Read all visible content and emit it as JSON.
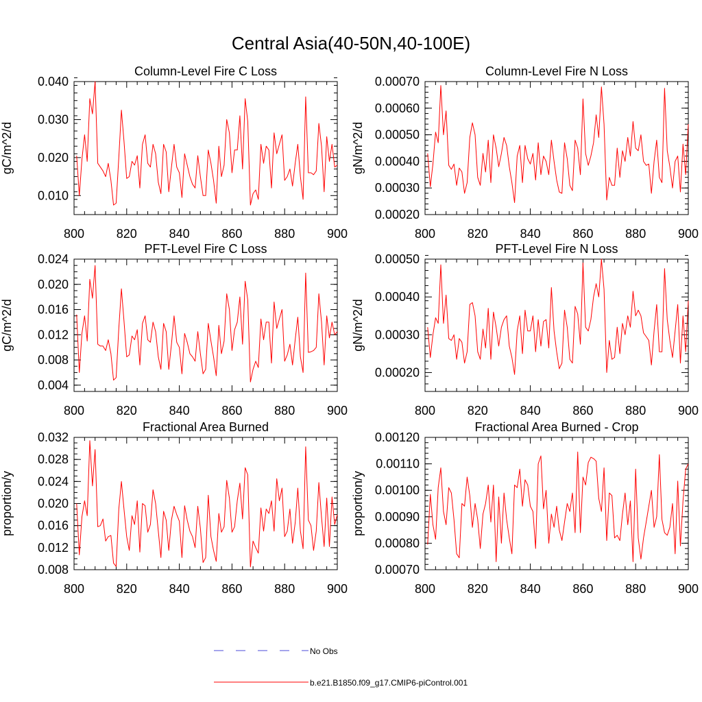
{
  "title": "Central Asia(40-50N,40-100E)",
  "colors": {
    "model_line": "#ff0000",
    "obs_line": "#4a4ad8",
    "axis": "#000000"
  },
  "legend": {
    "obs_label": "No Obs",
    "model_label": "b.e21.B1850.f09_g17.CMIP6-piControl.001"
  },
  "chart_data": [
    {
      "type": "line",
      "title": "Column-Level Fire C Loss",
      "ylabel": "gC/m^2/d",
      "xlim": [
        800,
        900
      ],
      "ylim": [
        0.005,
        0.04
      ],
      "xticks": [
        800,
        820,
        840,
        860,
        880,
        900
      ],
      "xtick_labels": [
        "800",
        "820",
        "840",
        "860",
        "880",
        "900"
      ],
      "yticks": [
        0.01,
        0.02,
        0.03,
        0.04
      ],
      "ytick_labels": [
        "0.010",
        "0.020",
        "0.030",
        "0.040"
      ],
      "minor_y": 0.002,
      "x_start": 801,
      "series": [
        {
          "name": "b.e21.B1850.f09_g17.CMIP6-piControl.001",
          "values": [
            0.0205,
            0.01,
            0.0195,
            0.026,
            0.019,
            0.0355,
            0.0315,
            0.04,
            0.0185,
            0.0175,
            0.0165,
            0.015,
            0.0185,
            0.014,
            0.0075,
            0.008,
            0.02,
            0.0325,
            0.024,
            0.0145,
            0.015,
            0.019,
            0.018,
            0.0205,
            0.012,
            0.0235,
            0.026,
            0.0185,
            0.0175,
            0.0235,
            0.021,
            0.0135,
            0.0105,
            0.0235,
            0.0215,
            0.011,
            0.0175,
            0.0235,
            0.0175,
            0.016,
            0.0095,
            0.021,
            0.018,
            0.015,
            0.013,
            0.012,
            0.0205,
            0.015,
            0.01,
            0.01,
            0.022,
            0.0185,
            0.014,
            0.008,
            0.023,
            0.015,
            0.018,
            0.03,
            0.0265,
            0.016,
            0.022,
            0.022,
            0.031,
            0.017,
            0.0355,
            0.0295,
            0.0075,
            0.0105,
            0.0115,
            0.009,
            0.0235,
            0.0185,
            0.023,
            0.022,
            0.012,
            0.0265,
            0.021,
            0.0235,
            0.026,
            0.014,
            0.015,
            0.017,
            0.0125,
            0.0185,
            0.0235,
            0.015,
            0.009,
            0.036,
            0.016,
            0.016,
            0.0155,
            0.0165,
            0.029,
            0.023,
            0.011,
            0.0255,
            0.019,
            0.0235,
            0.0175,
            0.018
          ]
        }
      ]
    },
    {
      "type": "line",
      "title": "Column-Level Fire N Loss",
      "ylabel": "gN/m^2/d",
      "xlim": [
        800,
        900
      ],
      "ylim": [
        0.0002,
        0.0007
      ],
      "xticks": [
        800,
        820,
        840,
        860,
        880,
        900
      ],
      "xtick_labels": [
        "800",
        "820",
        "840",
        "860",
        "880",
        "900"
      ],
      "yticks": [
        0.0002,
        0.0003,
        0.0004,
        0.0005,
        0.0006,
        0.0007
      ],
      "ytick_labels": [
        "0.00020",
        "0.00030",
        "0.00040",
        "0.00050",
        "0.00060",
        "0.00070"
      ],
      "minor_y": 2e-05,
      "x_start": 801,
      "series": [
        {
          "name": "b.e21.B1850.f09_g17.CMIP6-piControl.001",
          "values": [
            0.00043,
            0.000305,
            0.00039,
            0.00051,
            0.00047,
            0.000685,
            0.0005,
            0.00059,
            0.000385,
            0.00037,
            0.00039,
            0.00031,
            0.000375,
            0.00036,
            0.00028,
            0.00032,
            0.00049,
            0.000545,
            0.0005,
            0.00034,
            0.00031,
            0.00043,
            0.00036,
            0.00048,
            0.00032,
            0.0005,
            0.00045,
            0.00038,
            0.00043,
            0.00049,
            0.00046,
            0.00038,
            0.00032,
            0.000245,
            0.00042,
            0.00046,
            0.00032,
            0.00046,
            0.00041,
            0.00039,
            0.00043,
            0.00033,
            0.00047,
            0.00035,
            0.00042,
            0.0004,
            0.00035,
            0.00048,
            0.0004,
            0.00033,
            0.000285,
            0.00028,
            0.00047,
            0.00041,
            0.00031,
            0.00029,
            0.00048,
            0.00045,
            0.00035,
            0.000635,
            0.00043,
            0.000385,
            0.00042,
            0.00047,
            0.000575,
            0.00049,
            0.00068,
            0.00054,
            0.000255,
            0.00034,
            0.00031,
            0.00031,
            0.00045,
            0.00034,
            0.00044,
            0.0004,
            0.00049,
            0.00042,
            0.00055,
            0.00045,
            0.00044,
            0.0005,
            0.0004,
            0.000385,
            0.00039,
            0.00028,
            0.0004,
            0.00048,
            0.00034,
            0.00032,
            0.000675,
            0.00044,
            0.00038,
            0.0003,
            0.0004,
            0.00042,
            0.000285,
            0.000465,
            0.00035,
            0.00054
          ]
        }
      ]
    },
    {
      "type": "line",
      "title": "PFT-Level Fire C Loss",
      "ylabel": "gC/m^2/d",
      "xlim": [
        800,
        900
      ],
      "ylim": [
        0.003,
        0.024
      ],
      "xticks": [
        800,
        820,
        840,
        860,
        880,
        900
      ],
      "xtick_labels": [
        "800",
        "820",
        "840",
        "860",
        "880",
        "900"
      ],
      "yticks": [
        0.004,
        0.008,
        0.012,
        0.016,
        0.02,
        0.024
      ],
      "ytick_labels": [
        "0.004",
        "0.008",
        "0.012",
        "0.016",
        "0.020",
        "0.024"
      ],
      "minor_y": 0.001,
      "x_start": 801,
      "series": [
        {
          "name": "b.e21.B1850.f09_g17.CMIP6-piControl.001",
          "values": [
            0.0152,
            0.006,
            0.0122,
            0.015,
            0.011,
            0.0208,
            0.0178,
            0.023,
            0.0105,
            0.0102,
            0.0102,
            0.0095,
            0.0112,
            0.009,
            0.0048,
            0.0052,
            0.013,
            0.0193,
            0.014,
            0.0085,
            0.0088,
            0.0118,
            0.0112,
            0.0128,
            0.0072,
            0.0138,
            0.015,
            0.0112,
            0.0108,
            0.014,
            0.0125,
            0.0085,
            0.0065,
            0.0138,
            0.0125,
            0.0065,
            0.0105,
            0.015,
            0.0108,
            0.01,
            0.0058,
            0.0122,
            0.0108,
            0.009,
            0.0085,
            0.0078,
            0.0125,
            0.009,
            0.0058,
            0.0065,
            0.0138,
            0.011,
            0.0085,
            0.0055,
            0.0135,
            0.009,
            0.011,
            0.0185,
            0.016,
            0.0095,
            0.0128,
            0.014,
            0.018,
            0.0105,
            0.0205,
            0.0175,
            0.0045,
            0.0065,
            0.0078,
            0.0068,
            0.0145,
            0.0112,
            0.014,
            0.014,
            0.0075,
            0.0172,
            0.013,
            0.0145,
            0.016,
            0.0078,
            0.0088,
            0.0105,
            0.0072,
            0.0112,
            0.0148,
            0.0085,
            0.006,
            0.0218,
            0.0092,
            0.0093,
            0.0095,
            0.01,
            0.0185,
            0.014,
            0.0072,
            0.015,
            0.0115,
            0.014,
            0.012,
            0.0125
          ]
        }
      ]
    },
    {
      "type": "line",
      "title": "PFT-Level Fire N Loss",
      "ylabel": "gN/m^2/d",
      "xlim": [
        800,
        900
      ],
      "ylim": [
        0.00015,
        0.0005
      ],
      "xticks": [
        800,
        820,
        840,
        860,
        880,
        900
      ],
      "xtick_labels": [
        "800",
        "820",
        "840",
        "860",
        "880",
        "900"
      ],
      "yticks": [
        0.0002,
        0.0003,
        0.0004,
        0.0005
      ],
      "ytick_labels": [
        "0.00020",
        "0.00030",
        "0.00040",
        "0.00050"
      ],
      "minor_y": 2e-05,
      "x_start": 801,
      "series": [
        {
          "name": "b.e21.B1850.f09_g17.CMIP6-piControl.001",
          "values": [
            0.00032,
            0.00024,
            0.0003,
            0.000345,
            0.00033,
            0.000485,
            0.00033,
            0.000405,
            0.00029,
            0.000285,
            0.0003,
            0.000235,
            0.00029,
            0.00028,
            0.000225,
            0.000255,
            0.00038,
            0.000385,
            0.00035,
            0.000255,
            0.000235,
            0.000315,
            0.000265,
            0.00037,
            0.000235,
            0.00036,
            0.00032,
            0.00027,
            0.00032,
            0.00034,
            0.00035,
            0.00027,
            0.00024,
            0.000195,
            0.00031,
            0.00035,
            0.00025,
            0.000365,
            0.00031,
            0.00031,
            0.00035,
            0.000255,
            0.00034,
            0.00027,
            0.000335,
            0.00034,
            0.000265,
            0.000425,
            0.00031,
            0.000255,
            0.00021,
            0.000225,
            0.000365,
            0.00032,
            0.000235,
            0.000225,
            0.000375,
            0.000355,
            0.000275,
            0.00049,
            0.00032,
            0.00031,
            0.00034,
            0.0004,
            0.000435,
            0.0004,
            0.0005,
            0.00042,
            0.0002,
            0.000285,
            0.000235,
            0.00024,
            0.00032,
            0.00025,
            0.00033,
            0.0003,
            0.00035,
            0.00032,
            0.000415,
            0.00035,
            0.000365,
            0.00035,
            0.000305,
            0.000295,
            0.000285,
            0.00022,
            0.00031,
            0.00038,
            0.000255,
            0.000255,
            0.000475,
            0.00034,
            0.000285,
            0.00024,
            0.00031,
            0.00038,
            0.000225,
            0.00035,
            0.000255,
            0.00039
          ]
        }
      ]
    },
    {
      "type": "line",
      "title": "Fractional Area Burned",
      "ylabel": "proportion/y",
      "xlim": [
        800,
        900
      ],
      "ylim": [
        0.008,
        0.032
      ],
      "xticks": [
        800,
        820,
        840,
        860,
        880,
        900
      ],
      "xtick_labels": [
        "800",
        "820",
        "840",
        "860",
        "880",
        "900"
      ],
      "yticks": [
        0.008,
        0.012,
        0.016,
        0.02,
        0.024,
        0.028,
        0.032
      ],
      "ytick_labels": [
        "0.008",
        "0.012",
        "0.016",
        "0.020",
        "0.024",
        "0.028",
        "0.032"
      ],
      "minor_y": 0.001,
      "x_start": 801,
      "series": [
        {
          "name": "b.e21.B1850.f09_g17.CMIP6-piControl.001",
          "values": [
            0.02,
            0.0107,
            0.0176,
            0.0205,
            0.0178,
            0.0314,
            0.0232,
            0.0298,
            0.0158,
            0.016,
            0.0172,
            0.0132,
            0.014,
            0.0142,
            0.0092,
            0.0086,
            0.019,
            0.024,
            0.0188,
            0.014,
            0.0115,
            0.0178,
            0.0162,
            0.0205,
            0.0112,
            0.02,
            0.0196,
            0.0148,
            0.0162,
            0.0225,
            0.02,
            0.015,
            0.0102,
            0.0186,
            0.017,
            0.0115,
            0.017,
            0.0195,
            0.018,
            0.0168,
            0.0102,
            0.0196,
            0.017,
            0.015,
            0.014,
            0.012,
            0.0195,
            0.0155,
            0.0093,
            0.0102,
            0.0215,
            0.014,
            0.0115,
            0.0095,
            0.0182,
            0.0148,
            0.0158,
            0.0242,
            0.021,
            0.0148,
            0.0158,
            0.0205,
            0.0237,
            0.0172,
            0.0265,
            0.0252,
            0.0085,
            0.0132,
            0.012,
            0.011,
            0.0192,
            0.015,
            0.019,
            0.0182,
            0.0205,
            0.015,
            0.0245,
            0.0205,
            0.0228,
            0.014,
            0.015,
            0.019,
            0.0128,
            0.0165,
            0.0228,
            0.015,
            0.0118,
            0.0303,
            0.017,
            0.016,
            0.0115,
            0.015,
            0.0238,
            0.0175,
            0.0122,
            0.021,
            0.0122,
            0.0212,
            0.0162,
            0.018
          ]
        }
      ]
    },
    {
      "type": "line",
      "title": "Fractional Area Burned - Crop",
      "ylabel": "proportion/y",
      "xlim": [
        800,
        900
      ],
      "ylim": [
        0.0007,
        0.0012
      ],
      "xticks": [
        800,
        820,
        840,
        860,
        880,
        900
      ],
      "xtick_labels": [
        "800",
        "820",
        "840",
        "860",
        "880",
        "900"
      ],
      "yticks": [
        0.0007,
        0.0008,
        0.0009,
        0.001,
        0.0011,
        0.0012
      ],
      "ytick_labels": [
        "0.00070",
        "0.00080",
        "0.00090",
        "0.00100",
        "0.00110",
        "0.00120"
      ],
      "minor_y": 2e-05,
      "x_start": 801,
      "series": [
        {
          "name": "b.e21.B1850.f09_g17.CMIP6-piControl.001",
          "values": [
            0.000795,
            0.000985,
            0.00087,
            0.000815,
            0.00101,
            0.001085,
            0.00092,
            0.00087,
            0.00101,
            0.00099,
            0.00089,
            0.00076,
            0.000745,
            0.00095,
            0.00094,
            0.00105,
            0.00098,
            0.00086,
            0.00095,
            0.00089,
            0.00078,
            0.00091,
            0.00095,
            0.00102,
            0.00088,
            0.00102,
            0.00073,
            0.000975,
            0.0008,
            0.00099,
            0.00089,
            0.00082,
            0.00076,
            0.00102,
            0.00101,
            0.00108,
            0.00094,
            0.00104,
            0.00102,
            0.00094,
            0.00092,
            0.00078,
            0.0011,
            0.00113,
            0.00093,
            0.001,
            0.0008,
            0.00091,
            0.00086,
            0.00094,
            0.00085,
            0.00081,
            0.00088,
            0.00095,
            0.00092,
            0.00099,
            0.00084,
            0.001145,
            0.00084,
            0.00105,
            0.00102,
            0.001105,
            0.001125,
            0.00112,
            0.00111,
            0.00097,
            0.00092,
            0.001085,
            0.00081,
            0.00099,
            0.00098,
            0.00082,
            0.00083,
            0.00081,
            0.00091,
            0.00099,
            0.00087,
            0.00096,
            0.00073,
            0.00108,
            0.00082,
            0.00074,
            0.00082,
            0.00088,
            0.00094,
            0.001,
            0.00086,
            0.0009,
            0.001135,
            0.00089,
            0.00084,
            0.00083,
            0.00086,
            0.00095,
            0.00076,
            0.001035,
            0.00079,
            0.00096,
            0.00108,
            0.0011
          ]
        }
      ]
    }
  ]
}
